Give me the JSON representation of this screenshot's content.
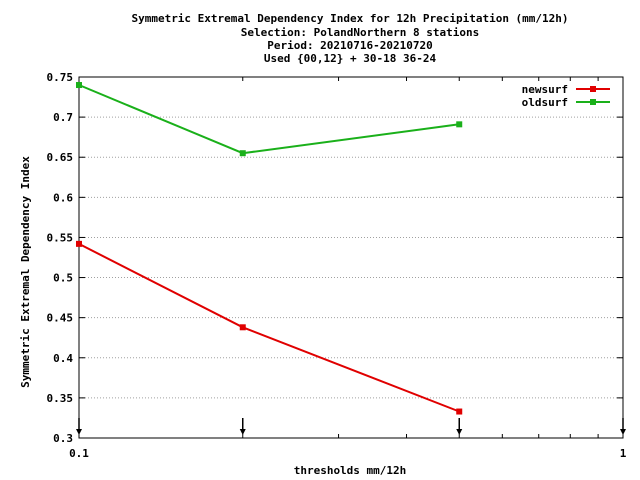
{
  "chart_data": {
    "type": "line",
    "title_lines": [
      "Symmetric Extremal Dependency Index  for 12h Precipitation (mm/12h)",
      "Selection: PolandNorthern      8 stations",
      "Period: 20210716-20210720",
      "Used {00,12} + 30-18 36-24"
    ],
    "xlabel": "thresholds mm/12h",
    "ylabel": "Symmetric Extremal Dependency Index",
    "xscale": "log",
    "xlim": [
      0.1,
      1
    ],
    "ylim": [
      0.3,
      0.75
    ],
    "x_tick_labels": [
      "0.1",
      "1"
    ],
    "y_ticks": [
      0.3,
      0.35,
      0.4,
      0.45,
      0.5,
      0.55,
      0.6,
      0.65,
      0.7,
      0.75
    ],
    "y_tick_labels": [
      "0.3",
      "0.35",
      "0.4",
      "0.45",
      "0.5",
      "0.55",
      "0.6",
      "0.65",
      "0.7",
      "0.75"
    ],
    "grid": true,
    "legend_position": "top-right",
    "threshold_markers": [
      0.1,
      0.2,
      0.5,
      1
    ],
    "series": [
      {
        "name": "newsurf",
        "color": "#e00000",
        "x": [
          0.1,
          0.2,
          0.5
        ],
        "y": [
          0.542,
          0.438,
          0.333
        ]
      },
      {
        "name": "oldsurf",
        "color": "#1ab01a",
        "x": [
          0.1,
          0.2,
          0.5
        ],
        "y": [
          0.74,
          0.655,
          0.691
        ]
      }
    ]
  }
}
